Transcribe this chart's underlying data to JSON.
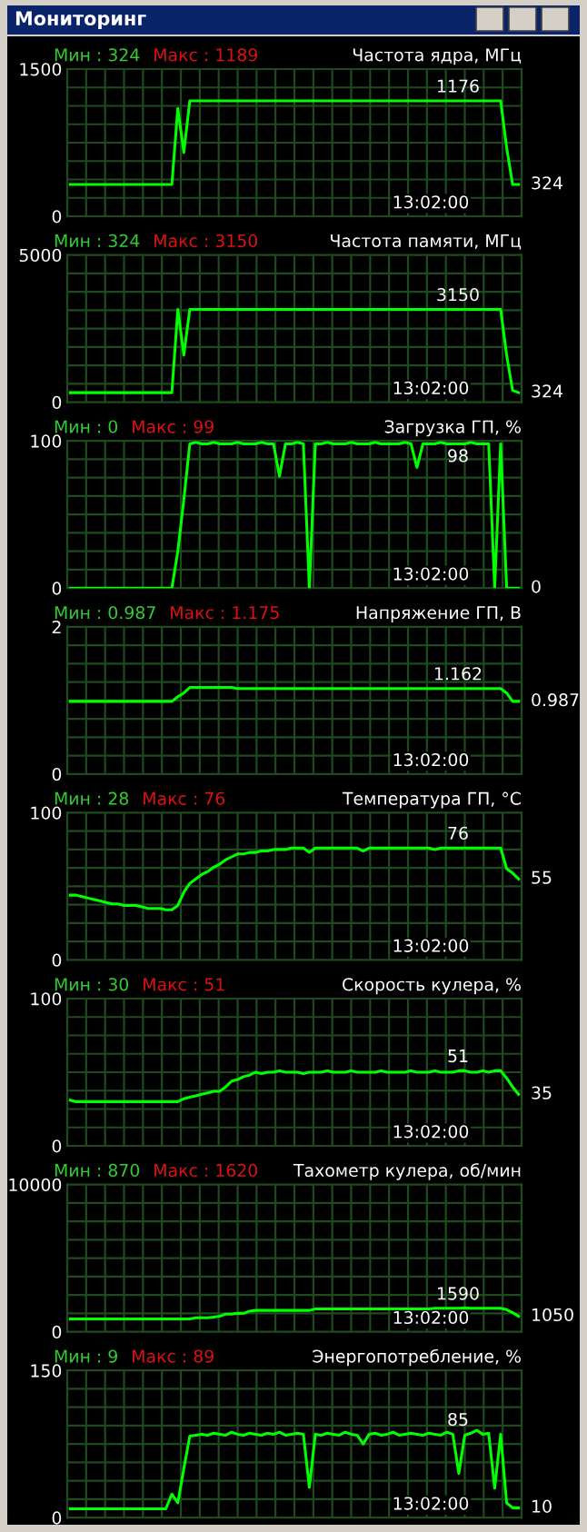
{
  "chart_data": [
    {
      "type": "line",
      "title": "Частота ядра, МГц",
      "categories": [
        null,
        null,
        null,
        null,
        null,
        null,
        null,
        null,
        null,
        null,
        null,
        null,
        null,
        null,
        null,
        null,
        null,
        null,
        null,
        null,
        null,
        null,
        null,
        null,
        null,
        null,
        null,
        null,
        null,
        null,
        null,
        null,
        null,
        null,
        null,
        null,
        null,
        null,
        null,
        null,
        null,
        null,
        null,
        null,
        null,
        null,
        null,
        null,
        null,
        null,
        null,
        null,
        null,
        null,
        null,
        null,
        null,
        null,
        null,
        null,
        null,
        null,
        null,
        null,
        null,
        null,
        null,
        null,
        null,
        null,
        null,
        null,
        null,
        null,
        null,
        null
      ],
      "series": [
        {
          "color": "#00ff00",
          "values": [
            324,
            324,
            324,
            324,
            324,
            324,
            324,
            324,
            324,
            324,
            324,
            324,
            324,
            324,
            324,
            324,
            324,
            324,
            1100,
            650,
            1176,
            1176,
            1176,
            1176,
            1176,
            1176,
            1176,
            1176,
            1176,
            1176,
            1176,
            1176,
            1176,
            1176,
            1176,
            1176,
            1176,
            1176,
            1176,
            1176,
            1176,
            1176,
            1176,
            1176,
            1176,
            1176,
            1176,
            1176,
            1176,
            1176,
            1176,
            1176,
            1176,
            1176,
            1176,
            1176,
            1176,
            1176,
            1176,
            1176,
            1176,
            1176,
            1176,
            1176,
            1176,
            1176,
            1176,
            1176,
            1176,
            1176,
            1176,
            1176,
            1176,
            700,
            324,
            324
          ]
        }
      ],
      "ylim": [
        0,
        1500
      ],
      "yticks": [
        0,
        1500
      ],
      "grid": true,
      "tick_labels": "y",
      "annotations": [
        "Мин : 324",
        "Макс : 1189",
        {
          "text": "1176",
          "y": 1176
        },
        "324",
        "13:02:00",
        "Мониторинг"
      ]
    },
    {
      "type": "line",
      "title": "Частота памяти, МГц",
      "categories": [
        null,
        null,
        null,
        null,
        null,
        null,
        null,
        null,
        null,
        null,
        null,
        null,
        null,
        null,
        null,
        null,
        null,
        null,
        null,
        null,
        null,
        null,
        null,
        null,
        null,
        null,
        null,
        null,
        null,
        null,
        null,
        null,
        null,
        null,
        null,
        null,
        null,
        null,
        null,
        null,
        null,
        null,
        null,
        null,
        null,
        null,
        null,
        null,
        null,
        null,
        null,
        null,
        null,
        null,
        null,
        null,
        null,
        null,
        null,
        null,
        null,
        null,
        null,
        null,
        null,
        null,
        null,
        null,
        null,
        null,
        null,
        null,
        null,
        null,
        null,
        null
      ],
      "series": [
        {
          "color": "#00ff00",
          "values": [
            324,
            324,
            324,
            324,
            324,
            324,
            324,
            324,
            324,
            324,
            324,
            324,
            324,
            324,
            324,
            324,
            324,
            324,
            3150,
            1600,
            3150,
            3150,
            3150,
            3150,
            3150,
            3150,
            3150,
            3150,
            3150,
            3150,
            3150,
            3150,
            3150,
            3150,
            3150,
            3150,
            3150,
            3150,
            3150,
            3150,
            3150,
            3150,
            3150,
            3150,
            3150,
            3150,
            3150,
            3150,
            3150,
            3150,
            3150,
            3150,
            3150,
            3150,
            3150,
            3150,
            3150,
            3150,
            3150,
            3150,
            3150,
            3150,
            3150,
            3150,
            3150,
            3150,
            3150,
            3150,
            3150,
            3150,
            3150,
            3150,
            3150,
            1600,
            400,
            324
          ]
        }
      ],
      "ylim": [
        0,
        5000
      ],
      "yticks": [
        0,
        5000
      ],
      "grid": true,
      "tick_labels": "y",
      "annotations": [
        "Мин : 324",
        "Макс : 3150",
        {
          "text": "3150",
          "y": 3150
        },
        "324",
        "13:02:00"
      ]
    },
    {
      "type": "line",
      "title": "Загрузка ГП, %",
      "categories": [
        null,
        null,
        null,
        null,
        null,
        null,
        null,
        null,
        null,
        null,
        null,
        null,
        null,
        null,
        null,
        null,
        null,
        null,
        null,
        null,
        null,
        null,
        null,
        null,
        null,
        null,
        null,
        null,
        null,
        null,
        null,
        null,
        null,
        null,
        null,
        null,
        null,
        null,
        null,
        null,
        null,
        null,
        null,
        null,
        null,
        null,
        null,
        null,
        null,
        null,
        null,
        null,
        null,
        null,
        null,
        null,
        null,
        null,
        null,
        null,
        null,
        null,
        null,
        null,
        null,
        null,
        null,
        null,
        null,
        null,
        null,
        null,
        null,
        null,
        null,
        null
      ],
      "series": [
        {
          "color": "#00ff00",
          "values": [
            0,
            0,
            0,
            0,
            0,
            0,
            0,
            0,
            0,
            0,
            0,
            0,
            0,
            0,
            0,
            0,
            0,
            0,
            25,
            60,
            98,
            99,
            98,
            98,
            99,
            98,
            98,
            98,
            99,
            98,
            98,
            98,
            99,
            98,
            98,
            76,
            98,
            98,
            99,
            98,
            0,
            98,
            98,
            99,
            98,
            98,
            98,
            99,
            98,
            98,
            98,
            99,
            98,
            98,
            98,
            98,
            99,
            98,
            82,
            98,
            98,
            98,
            99,
            98,
            98,
            98,
            98,
            99,
            98,
            98,
            98,
            0,
            98,
            0,
            0,
            0
          ]
        }
      ],
      "ylim": [
        0,
        100
      ],
      "yticks": [
        0,
        100
      ],
      "grid": true,
      "tick_labels": "y",
      "annotations": [
        "Мин : 0",
        "Макс : 99",
        {
          "text": "98",
          "y": 98
        },
        "0",
        "13:02:00"
      ]
    },
    {
      "type": "line",
      "title": "Напряжение ГП, В",
      "categories": [
        null,
        null,
        null,
        null,
        null,
        null,
        null,
        null,
        null,
        null,
        null,
        null,
        null,
        null,
        null,
        null,
        null,
        null,
        null,
        null,
        null,
        null,
        null,
        null,
        null,
        null,
        null,
        null,
        null,
        null,
        null,
        null,
        null,
        null,
        null,
        null,
        null,
        null,
        null,
        null,
        null,
        null,
        null,
        null,
        null,
        null,
        null,
        null,
        null,
        null,
        null,
        null,
        null,
        null,
        null,
        null,
        null,
        null,
        null,
        null,
        null,
        null,
        null,
        null,
        null,
        null,
        null,
        null,
        null,
        null,
        null,
        null,
        null,
        null,
        null,
        null
      ],
      "series": [
        {
          "color": "#00ff00",
          "values": [
            0.987,
            0.987,
            0.987,
            0.987,
            0.987,
            0.987,
            0.987,
            0.987,
            0.987,
            0.987,
            0.987,
            0.987,
            0.987,
            0.987,
            0.987,
            0.987,
            0.987,
            0.987,
            1.05,
            1.1,
            1.175,
            1.175,
            1.175,
            1.175,
            1.175,
            1.175,
            1.175,
            1.175,
            1.162,
            1.162,
            1.162,
            1.162,
            1.162,
            1.162,
            1.162,
            1.162,
            1.162,
            1.162,
            1.162,
            1.162,
            1.162,
            1.162,
            1.162,
            1.162,
            1.162,
            1.162,
            1.162,
            1.162,
            1.162,
            1.162,
            1.162,
            1.162,
            1.162,
            1.162,
            1.162,
            1.162,
            1.162,
            1.162,
            1.162,
            1.162,
            1.162,
            1.162,
            1.162,
            1.162,
            1.162,
            1.162,
            1.162,
            1.162,
            1.162,
            1.162,
            1.162,
            1.162,
            1.162,
            1.1,
            0.987,
            0.987
          ]
        }
      ],
      "ylim": [
        0,
        2
      ],
      "yticks": [
        0,
        2
      ],
      "grid": true,
      "tick_labels": "y",
      "annotations": [
        "Мин : 0.987",
        "Макс : 1.175",
        {
          "text": "1.162",
          "y": 1.162
        },
        "0.987",
        "13:02:00"
      ]
    },
    {
      "type": "line",
      "title": "Температура ГП, °С",
      "categories": [
        null,
        null,
        null,
        null,
        null,
        null,
        null,
        null,
        null,
        null,
        null,
        null,
        null,
        null,
        null,
        null,
        null,
        null,
        null,
        null,
        null,
        null,
        null,
        null,
        null,
        null,
        null,
        null,
        null,
        null,
        null,
        null,
        null,
        null,
        null,
        null,
        null,
        null,
        null,
        null,
        null,
        null,
        null,
        null,
        null,
        null,
        null,
        null,
        null,
        null,
        null,
        null,
        null,
        null,
        null,
        null,
        null,
        null,
        null,
        null,
        null,
        null,
        null,
        null,
        null,
        null,
        null,
        null,
        null,
        null,
        null,
        null,
        null,
        null,
        null,
        null
      ],
      "series": [
        {
          "color": "#00ff00",
          "values": [
            44,
            44,
            43,
            42,
            41,
            40,
            39,
            38,
            38,
            37,
            37,
            37,
            36,
            35,
            35,
            35,
            34,
            34,
            37,
            46,
            52,
            55,
            58,
            60,
            63,
            65,
            68,
            70,
            72,
            72,
            73,
            73,
            74,
            74,
            75,
            75,
            75,
            76,
            76,
            76,
            73,
            76,
            76,
            76,
            76,
            76,
            76,
            76,
            76,
            74,
            76,
            76,
            76,
            76,
            76,
            76,
            76,
            76,
            76,
            76,
            76,
            75,
            76,
            76,
            76,
            76,
            76,
            76,
            76,
            76,
            76,
            76,
            76,
            62,
            59,
            55
          ]
        }
      ],
      "ylim": [
        0,
        100
      ],
      "yticks": [
        0,
        100
      ],
      "grid": true,
      "tick_labels": "y",
      "annotations": [
        "Мин : 28",
        "Макс : 76",
        {
          "text": "76",
          "y": 76
        },
        "55",
        "13:02:00"
      ]
    },
    {
      "type": "line",
      "title": "Скорость кулера, %",
      "categories": [
        null,
        null,
        null,
        null,
        null,
        null,
        null,
        null,
        null,
        null,
        null,
        null,
        null,
        null,
        null,
        null,
        null,
        null,
        null,
        null,
        null,
        null,
        null,
        null,
        null,
        null,
        null,
        null,
        null,
        null,
        null,
        null,
        null,
        null,
        null,
        null,
        null,
        null,
        null,
        null,
        null,
        null,
        null,
        null,
        null,
        null,
        null,
        null,
        null,
        null,
        null,
        null,
        null,
        null,
        null,
        null,
        null,
        null,
        null,
        null,
        null,
        null,
        null,
        null,
        null,
        null,
        null,
        null,
        null,
        null,
        null,
        null,
        null,
        null,
        null,
        null
      ],
      "series": [
        {
          "color": "#00ff00",
          "values": [
            31,
            30,
            30,
            30,
            30,
            30,
            30,
            30,
            30,
            30,
            30,
            30,
            30,
            30,
            30,
            30,
            30,
            30,
            30,
            32,
            33,
            34,
            35,
            36,
            37,
            37,
            40,
            44,
            45,
            47,
            48,
            50,
            49,
            50,
            50,
            51,
            50,
            50,
            50,
            49,
            50,
            50,
            50,
            51,
            50,
            50,
            50,
            51,
            50,
            50,
            50,
            50,
            51,
            50,
            50,
            50,
            50,
            51,
            50,
            50,
            50,
            51,
            50,
            50,
            50,
            51,
            51,
            50,
            50,
            51,
            50,
            51,
            51,
            46,
            40,
            35
          ]
        }
      ],
      "ylim": [
        0,
        100
      ],
      "yticks": [
        0,
        100
      ],
      "grid": true,
      "tick_labels": "y",
      "annotations": [
        "Мин : 30",
        "Макс : 51",
        {
          "text": "51",
          "y": 51
        },
        "35",
        "13:02:00"
      ]
    },
    {
      "type": "line",
      "title": "Тахометр кулера, об/мин",
      "categories": [
        null,
        null,
        null,
        null,
        null,
        null,
        null,
        null,
        null,
        null,
        null,
        null,
        null,
        null,
        null,
        null,
        null,
        null,
        null,
        null,
        null,
        null,
        null,
        null,
        null,
        null,
        null,
        null,
        null,
        null,
        null,
        null,
        null,
        null,
        null,
        null,
        null,
        null,
        null,
        null,
        null,
        null,
        null,
        null,
        null,
        null,
        null,
        null,
        null,
        null,
        null,
        null,
        null,
        null,
        null,
        null,
        null,
        null,
        null,
        null,
        null,
        null,
        null,
        null,
        null,
        null,
        null,
        null,
        null,
        null,
        null,
        null,
        null,
        null,
        null,
        null
      ],
      "series": [
        {
          "color": "#00ff00",
          "values": [
            870,
            870,
            870,
            870,
            870,
            870,
            870,
            870,
            870,
            870,
            870,
            870,
            870,
            870,
            870,
            870,
            870,
            870,
            870,
            870,
            870,
            950,
            950,
            950,
            1000,
            1050,
            1200,
            1200,
            1250,
            1250,
            1400,
            1450,
            1450,
            1450,
            1450,
            1450,
            1450,
            1450,
            1450,
            1450,
            1450,
            1550,
            1550,
            1550,
            1550,
            1550,
            1550,
            1550,
            1550,
            1550,
            1550,
            1550,
            1550,
            1550,
            1550,
            1550,
            1550,
            1550,
            1550,
            1550,
            1550,
            1590,
            1590,
            1590,
            1590,
            1590,
            1620,
            1590,
            1590,
            1590,
            1590,
            1590,
            1590,
            1500,
            1300,
            1050
          ]
        }
      ],
      "ylim": [
        0,
        10000
      ],
      "yticks": [
        0,
        10000
      ],
      "grid": true,
      "tick_labels": "y",
      "annotations": [
        "Мин : 870",
        "Макс : 1620",
        {
          "text": "1590",
          "y": 1590
        },
        "1050",
        "13:02:00"
      ]
    },
    {
      "type": "line",
      "title": "Энергопотребление, %",
      "categories": [
        null,
        null,
        null,
        null,
        null,
        null,
        null,
        null,
        null,
        null,
        null,
        null,
        null,
        null,
        null,
        null,
        null,
        null,
        null,
        null,
        null,
        null,
        null,
        null,
        null,
        null,
        null,
        null,
        null,
        null,
        null,
        null,
        null,
        null,
        null,
        null,
        null,
        null,
        null,
        null,
        null,
        null,
        null,
        null,
        null,
        null,
        null,
        null,
        null,
        null,
        null,
        null,
        null,
        null,
        null,
        null,
        null,
        null,
        null,
        null,
        null,
        null,
        null,
        null,
        null,
        null,
        null,
        null,
        null,
        null,
        null,
        null,
        null,
        null,
        null,
        null
      ],
      "series": [
        {
          "color": "#00ff00",
          "values": [
            9,
            9,
            9,
            9,
            9,
            9,
            9,
            9,
            9,
            9,
            9,
            9,
            9,
            9,
            9,
            9,
            9,
            24,
            15,
            50,
            83,
            84,
            85,
            84,
            86,
            85,
            84,
            87,
            85,
            84,
            86,
            85,
            84,
            86,
            85,
            87,
            84,
            85,
            86,
            85,
            31,
            85,
            84,
            86,
            85,
            84,
            87,
            85,
            84,
            75,
            85,
            86,
            84,
            85,
            87,
            84,
            85,
            86,
            85,
            84,
            86,
            85,
            84,
            87,
            85,
            45,
            84,
            86,
            89,
            85,
            86,
            30,
            85,
            15,
            10,
            10
          ]
        }
      ],
      "ylim": [
        0,
        150
      ],
      "yticks": [
        0,
        150
      ],
      "grid": true,
      "tick_labels": "y",
      "annotations": [
        "Мин : 9",
        "Макс : 89",
        {
          "text": "85",
          "y": 85
        },
        "10",
        "13:02:00"
      ]
    }
  ]
}
